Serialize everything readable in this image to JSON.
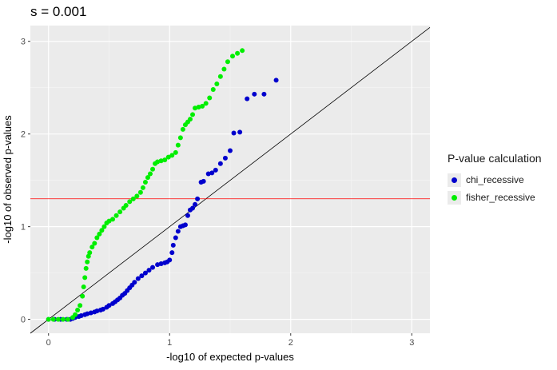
{
  "chart_data": {
    "type": "scatter",
    "title": "s = 0.001",
    "xlabel": "-log10 of expected p-values",
    "ylabel": "-log10 of observed p-values",
    "xlim": [
      -0.15,
      3.15
    ],
    "ylim": [
      -0.15,
      3.17
    ],
    "x_ticks": [
      0,
      1,
      2,
      3
    ],
    "y_ticks": [
      0,
      1,
      2,
      3
    ],
    "grid": true,
    "reference_line": {
      "type": "diagonal",
      "slope": 1,
      "intercept": 0,
      "color": "#000000"
    },
    "threshold_line": {
      "type": "horizontal",
      "y": 1.301,
      "color": "#ff0000"
    },
    "legend": {
      "title": "P-value calculation",
      "position": "right"
    },
    "series": [
      {
        "name": "chi_recessive",
        "color": "#0000cd",
        "points": [
          [
            0.0,
            0.0
          ],
          [
            0.05,
            0.0
          ],
          [
            0.1,
            0.0
          ],
          [
            0.15,
            0.0
          ],
          [
            0.18,
            0.0
          ],
          [
            0.2,
            0.01
          ],
          [
            0.22,
            0.02
          ],
          [
            0.25,
            0.03
          ],
          [
            0.27,
            0.04
          ],
          [
            0.3,
            0.05
          ],
          [
            0.32,
            0.06
          ],
          [
            0.35,
            0.07
          ],
          [
            0.38,
            0.08
          ],
          [
            0.4,
            0.09
          ],
          [
            0.43,
            0.1
          ],
          [
            0.45,
            0.11
          ],
          [
            0.48,
            0.13
          ],
          [
            0.5,
            0.15
          ],
          [
            0.53,
            0.17
          ],
          [
            0.55,
            0.19
          ],
          [
            0.57,
            0.21
          ],
          [
            0.59,
            0.23
          ],
          [
            0.61,
            0.26
          ],
          [
            0.63,
            0.28
          ],
          [
            0.65,
            0.31
          ],
          [
            0.67,
            0.34
          ],
          [
            0.69,
            0.37
          ],
          [
            0.71,
            0.4
          ],
          [
            0.74,
            0.44
          ],
          [
            0.77,
            0.47
          ],
          [
            0.8,
            0.5
          ],
          [
            0.83,
            0.53
          ],
          [
            0.86,
            0.56
          ],
          [
            0.9,
            0.59
          ],
          [
            0.93,
            0.6
          ],
          [
            0.96,
            0.61
          ],
          [
            0.98,
            0.62
          ],
          [
            1.0,
            0.64
          ],
          [
            1.02,
            0.72
          ],
          [
            1.03,
            0.8
          ],
          [
            1.05,
            0.88
          ],
          [
            1.07,
            0.95
          ],
          [
            1.09,
            1.0
          ],
          [
            1.11,
            1.01
          ],
          [
            1.13,
            1.02
          ],
          [
            1.15,
            1.12
          ],
          [
            1.17,
            1.18
          ],
          [
            1.19,
            1.2
          ],
          [
            1.21,
            1.24
          ],
          [
            1.23,
            1.3
          ],
          [
            1.26,
            1.48
          ],
          [
            1.28,
            1.49
          ],
          [
            1.32,
            1.57
          ],
          [
            1.35,
            1.58
          ],
          [
            1.38,
            1.61
          ],
          [
            1.42,
            1.68
          ],
          [
            1.46,
            1.74
          ],
          [
            1.5,
            1.82
          ],
          [
            1.53,
            2.01
          ],
          [
            1.58,
            2.02
          ],
          [
            1.64,
            2.38
          ],
          [
            1.7,
            2.43
          ],
          [
            1.78,
            2.43
          ],
          [
            1.88,
            2.58
          ]
        ]
      },
      {
        "name": "fisher_recessive",
        "color": "#00ee00",
        "points": [
          [
            0.0,
            0.0
          ],
          [
            0.04,
            0.0
          ],
          [
            0.08,
            0.0
          ],
          [
            0.12,
            0.0
          ],
          [
            0.16,
            0.0
          ],
          [
            0.2,
            0.02
          ],
          [
            0.22,
            0.05
          ],
          [
            0.24,
            0.1
          ],
          [
            0.26,
            0.15
          ],
          [
            0.28,
            0.25
          ],
          [
            0.29,
            0.35
          ],
          [
            0.3,
            0.45
          ],
          [
            0.31,
            0.55
          ],
          [
            0.32,
            0.62
          ],
          [
            0.33,
            0.68
          ],
          [
            0.34,
            0.72
          ],
          [
            0.36,
            0.78
          ],
          [
            0.38,
            0.82
          ],
          [
            0.4,
            0.88
          ],
          [
            0.42,
            0.92
          ],
          [
            0.44,
            0.96
          ],
          [
            0.46,
            1.0
          ],
          [
            0.48,
            1.04
          ],
          [
            0.5,
            1.06
          ],
          [
            0.53,
            1.08
          ],
          [
            0.56,
            1.12
          ],
          [
            0.59,
            1.16
          ],
          [
            0.62,
            1.2
          ],
          [
            0.64,
            1.23
          ],
          [
            0.67,
            1.27
          ],
          [
            0.7,
            1.3
          ],
          [
            0.73,
            1.33
          ],
          [
            0.76,
            1.37
          ],
          [
            0.78,
            1.42
          ],
          [
            0.8,
            1.48
          ],
          [
            0.82,
            1.53
          ],
          [
            0.84,
            1.57
          ],
          [
            0.86,
            1.62
          ],
          [
            0.88,
            1.68
          ],
          [
            0.9,
            1.7
          ],
          [
            0.93,
            1.71
          ],
          [
            0.96,
            1.72
          ],
          [
            0.99,
            1.75
          ],
          [
            1.02,
            1.77
          ],
          [
            1.05,
            1.8
          ],
          [
            1.07,
            1.88
          ],
          [
            1.09,
            1.96
          ],
          [
            1.11,
            2.05
          ],
          [
            1.13,
            2.1
          ],
          [
            1.15,
            2.13
          ],
          [
            1.17,
            2.16
          ],
          [
            1.19,
            2.21
          ],
          [
            1.21,
            2.28
          ],
          [
            1.24,
            2.29
          ],
          [
            1.27,
            2.3
          ],
          [
            1.3,
            2.33
          ],
          [
            1.33,
            2.39
          ],
          [
            1.36,
            2.48
          ],
          [
            1.39,
            2.54
          ],
          [
            1.42,
            2.62
          ],
          [
            1.45,
            2.7
          ],
          [
            1.48,
            2.78
          ],
          [
            1.52,
            2.84
          ],
          [
            1.56,
            2.87
          ],
          [
            1.6,
            2.9
          ]
        ]
      }
    ]
  }
}
